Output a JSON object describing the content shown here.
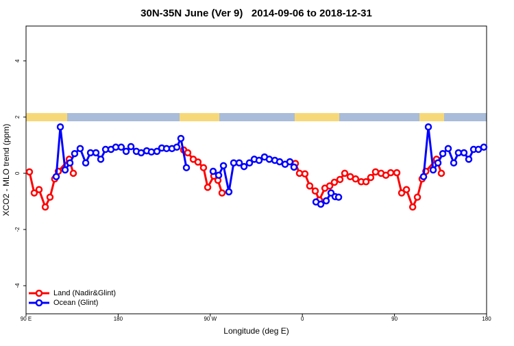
{
  "chart_data": {
    "type": "line",
    "title": "30N-35N June (Ver 9)   2014-09-06 to 2018-12-31",
    "x_label": "Longitude (deg E)",
    "y_label": "XCO2 - MLO trend (ppm)",
    "xlim": [
      90,
      540
    ],
    "xticks": [
      {
        "value": 90,
        "label": "90 E"
      },
      180,
      {
        "value": 270,
        "label": "90 W"
      },
      {
        "value": 360,
        "label": "0"
      },
      {
        "value": 450,
        "label": "90"
      },
      {
        "value": 540,
        "label": "180"
      }
    ],
    "ylim": [
      -5,
      5.24
    ],
    "yticks": [
      4,
      2,
      0,
      -2,
      -4
    ],
    "legend": "bottom-left",
    "series": [
      {
        "name": "Land (Nadir&Glint)",
        "color": "#ff0000",
        "x": [
          93.3,
          98,
          102.7,
          108.8,
          113.4,
          118,
          121.5,
          132.2,
          136.2,
          null,
          244,
          248,
          253.4,
          258,
          263.4,
          267.5,
          273.5,
          277.5,
          281.5,
          null,
          353.2,
          357.2,
          362.5,
          367.2,
          372.6,
          376.6,
          382,
          386.7,
          391.3,
          396.7,
          401.4,
          406.8,
          412,
          417.5,
          422.2,
          426.8,
          431.5,
          436.9,
          441.6,
          446.3,
          452.3,
          457,
          461.7,
          467.8,
          472.4,
          477,
          480.6,
          491.1,
          495.8
        ],
        "values": [
          0.05,
          -0.7,
          -0.58,
          -1.2,
          -0.85,
          -0.2,
          0.07,
          0.5,
          0,
          null,
          0.83,
          0.73,
          0.5,
          0.4,
          0.2,
          -0.5,
          -0.1,
          -0.25,
          -0.7,
          null,
          0.35,
          0,
          -0.02,
          -0.45,
          -0.63,
          -0.95,
          -0.53,
          -0.45,
          -0.32,
          -0.22,
          0,
          -0.12,
          -0.2,
          -0.3,
          -0.3,
          -0.15,
          0.05,
          0,
          -0.07,
          0.02,
          0.02,
          -0.7,
          -0.58,
          -1.2,
          -0.85,
          -0.2,
          0.07,
          0.5,
          0
        ]
      },
      {
        "name": "Ocean (Glint)",
        "color": "#0000ff",
        "x": [
          119.5,
          123.5,
          128.2,
          132.9,
          137.5,
          142.9,
          148.3,
          153,
          158.3,
          163,
          167.7,
          173,
          177.7,
          183,
          187.8,
          192.5,
          197.8,
          202.5,
          207.9,
          212.5,
          217.9,
          222.6,
          227.3,
          232.6,
          237.3,
          241.3,
          246.7,
          null,
          272.8,
          278.2,
          282.9,
          288.2,
          292.9,
          298.3,
          303,
          308.3,
          313,
          317.7,
          323,
          327.7,
          333.1,
          337.8,
          343.1,
          347.8,
          351.8,
          null,
          373.3,
          378,
          383.3,
          388,
          392,
          395.4,
          null,
          478.4,
          483.1,
          487.8,
          492.5,
          497.2,
          502.5,
          507.9,
          512.5,
          517.9,
          522.6,
          527.3,
          532,
          537.3
        ],
        "values": [
          -0.12,
          1.65,
          0.12,
          0.37,
          0.7,
          0.88,
          0.37,
          0.73,
          0.73,
          0.5,
          0.85,
          0.85,
          0.93,
          0.93,
          0.78,
          0.95,
          0.78,
          0.73,
          0.8,
          0.76,
          0.78,
          0.9,
          0.88,
          0.88,
          0.93,
          1.24,
          0.2,
          null,
          0.07,
          -0.07,
          0.27,
          -0.66,
          0.37,
          0.37,
          0.24,
          0.37,
          0.5,
          0.46,
          0.58,
          0.5,
          0.46,
          0.41,
          0.32,
          0.41,
          0.22,
          null,
          -1.02,
          -1.1,
          -0.98,
          -0.7,
          -0.83,
          -0.85,
          null,
          -0.12,
          1.65,
          0.12,
          0.37,
          0.7,
          0.88,
          0.37,
          0.73,
          0.73,
          0.5,
          0.85,
          0.85,
          0.93
        ]
      }
    ]
  }
}
